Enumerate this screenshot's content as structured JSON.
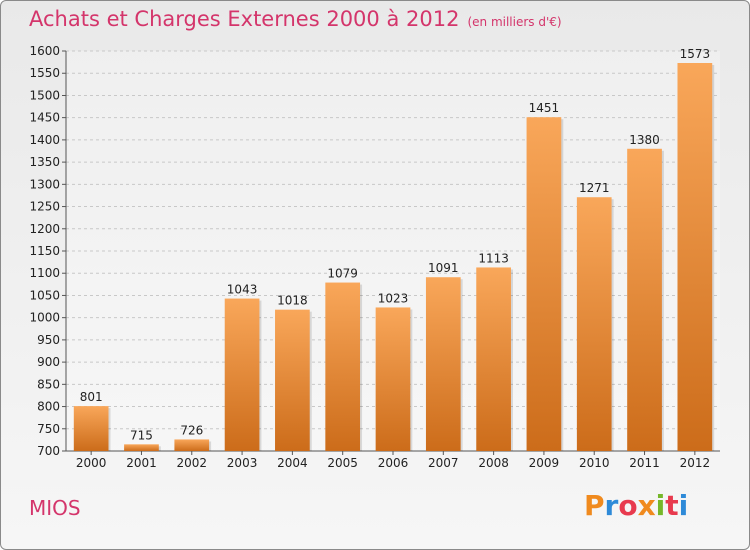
{
  "header": {
    "title": "Achats et Charges Externes 2000 à 2012",
    "subtitle": "(en milliers d'€)"
  },
  "footer": {
    "place": "MIOS",
    "logo": "Proxiti"
  },
  "colors": {
    "title": "#d4356b",
    "bar_light": "#f9a75a",
    "bar_dark": "#cc6c1a",
    "grid": "#c8c8c8",
    "logo": [
      "#f08a1e",
      "#2e8ad8",
      "#e83a4e",
      "#f08a1e",
      "#76b72a",
      "#e83a4e",
      "#2e8ad8"
    ]
  },
  "chart_data": {
    "type": "bar",
    "title": "Achats et Charges Externes 2000 à 2012",
    "subtitle": "(en milliers d'€)",
    "categories": [
      "2000",
      "2001",
      "2002",
      "2003",
      "2004",
      "2005",
      "2006",
      "2007",
      "2008",
      "2009",
      "2010",
      "2011",
      "2012"
    ],
    "values": [
      801,
      715,
      726,
      1043,
      1018,
      1079,
      1023,
      1091,
      1113,
      1451,
      1271,
      1380,
      1573
    ],
    "ylim": [
      700,
      1600
    ],
    "yticks": [
      700,
      750,
      800,
      850,
      900,
      950,
      1000,
      1050,
      1100,
      1150,
      1200,
      1250,
      1300,
      1350,
      1400,
      1450,
      1500,
      1550,
      1600
    ],
    "grid": true,
    "xlabel": "",
    "ylabel": ""
  }
}
